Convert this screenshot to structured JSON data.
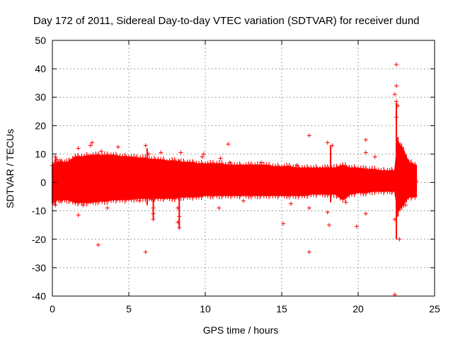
{
  "chart_data": {
    "type": "scatter",
    "title": "Day 172 of 2011, Sidereal Day-to-day VTEC variation (SDTVAR) for receiver dund",
    "xlabel": "GPS time / hours",
    "ylabel": "SDTVAR / TECUs",
    "xlim": [
      0,
      25
    ],
    "ylim": [
      -40,
      50
    ],
    "xticks": [
      0,
      5,
      10,
      15,
      20,
      25
    ],
    "yticks": [
      -40,
      -30,
      -20,
      -10,
      0,
      10,
      20,
      30,
      40,
      50
    ],
    "grid": true,
    "marker": "+",
    "color": "#ff0000",
    "series": [
      {
        "name": "SDTVAR",
        "envelope": {
          "x": [
            0.0,
            0.3,
            0.6,
            1.0,
            1.5,
            2.0,
            2.5,
            3.0,
            3.5,
            4.0,
            4.5,
            5.0,
            5.5,
            6.0,
            6.5,
            7.0,
            7.5,
            8.0,
            8.5,
            9.0,
            9.5,
            10.0,
            10.5,
            11.0,
            11.5,
            12.0,
            12.5,
            13.0,
            13.5,
            14.0,
            14.5,
            15.0,
            15.5,
            16.0,
            16.5,
            17.0,
            17.5,
            18.0,
            18.5,
            19.0,
            19.5,
            20.0,
            20.5,
            21.0,
            21.5,
            22.0,
            22.4,
            22.6,
            22.9,
            23.3,
            23.8
          ],
          "upper": [
            6,
            7,
            7,
            7,
            9,
            9,
            9.5,
            9.5,
            9.5,
            9.5,
            9,
            9,
            8.5,
            8.5,
            8,
            8,
            7.5,
            7.5,
            7,
            7,
            6.5,
            6.5,
            6.5,
            6.5,
            6,
            6,
            6,
            6,
            6,
            6,
            5.5,
            5.5,
            5.5,
            5,
            5,
            5,
            5,
            5,
            5,
            6,
            5,
            5,
            4.5,
            4.5,
            4,
            4,
            4,
            14,
            12,
            7,
            6
          ],
          "lower": [
            -7,
            -6,
            -6,
            -6,
            -7,
            -7,
            -7,
            -6.5,
            -6.5,
            -6,
            -6,
            -6,
            -5.5,
            -5.5,
            -5.5,
            -5.5,
            -5.5,
            -5.5,
            -5,
            -5,
            -5,
            -4.5,
            -4.5,
            -4.5,
            -4.5,
            -4.5,
            -4.5,
            -4.5,
            -4.5,
            -4.5,
            -4.5,
            -4.5,
            -4.5,
            -4.5,
            -4.5,
            -4,
            -4,
            -4,
            -4,
            -6,
            -4,
            -3.5,
            -3.5,
            -3,
            -3,
            -3,
            -3,
            -10,
            -8,
            -5,
            -5
          ]
        },
        "outliers": [
          {
            "x": 0.0,
            "y": 6
          },
          {
            "x": 0.2,
            "y": 9
          },
          {
            "x": 0.3,
            "y": 8
          },
          {
            "x": 0.2,
            "y": -8
          },
          {
            "x": 1.7,
            "y": 12
          },
          {
            "x": 1.7,
            "y": -11.5
          },
          {
            "x": 2.6,
            "y": 14
          },
          {
            "x": 2.5,
            "y": 13
          },
          {
            "x": 3.0,
            "y": -22
          },
          {
            "x": 3.2,
            "y": 11
          },
          {
            "x": 3.6,
            "y": -9
          },
          {
            "x": 4.3,
            "y": 12.5
          },
          {
            "x": 6.1,
            "y": 13
          },
          {
            "x": 6.1,
            "y": -24.5
          },
          {
            "x": 6.3,
            "y": 10
          },
          {
            "x": 6.5,
            "y": -6
          },
          {
            "x": 6.6,
            "y": -9
          },
          {
            "x": 6.6,
            "y": -11
          },
          {
            "x": 6.6,
            "y": -13
          },
          {
            "x": 7.1,
            "y": 10.5
          },
          {
            "x": 8.2,
            "y": -9
          },
          {
            "x": 8.3,
            "y": -12
          },
          {
            "x": 8.3,
            "y": -16
          },
          {
            "x": 8.4,
            "y": 10.5
          },
          {
            "x": 8.2,
            "y": -14
          },
          {
            "x": 9.2,
            "y": 7
          },
          {
            "x": 9.9,
            "y": 10
          },
          {
            "x": 10.9,
            "y": -9
          },
          {
            "x": 11.0,
            "y": 8.5
          },
          {
            "x": 11.5,
            "y": 13.5
          },
          {
            "x": 11.6,
            "y": 7
          },
          {
            "x": 13.7,
            "y": 7
          },
          {
            "x": 15.1,
            "y": -14.5
          },
          {
            "x": 15.6,
            "y": -7.5
          },
          {
            "x": 16.0,
            "y": 6
          },
          {
            "x": 16.8,
            "y": 16.5
          },
          {
            "x": 16.8,
            "y": -24.5
          },
          {
            "x": 16.8,
            "y": -9
          },
          {
            "x": 18.0,
            "y": 14
          },
          {
            "x": 18.0,
            "y": -10.5
          },
          {
            "x": 18.1,
            "y": -15
          },
          {
            "x": 18.3,
            "y": 13
          },
          {
            "x": 19.9,
            "y": -15.5
          },
          {
            "x": 20.5,
            "y": 15
          },
          {
            "x": 20.5,
            "y": -11
          },
          {
            "x": 20.5,
            "y": 10.5
          },
          {
            "x": 21.1,
            "y": 9
          },
          {
            "x": 22.4,
            "y": -39.5
          },
          {
            "x": 22.5,
            "y": 41.5
          },
          {
            "x": 22.5,
            "y": 34
          },
          {
            "x": 22.4,
            "y": 31
          },
          {
            "x": 22.5,
            "y": 28.5
          },
          {
            "x": 22.6,
            "y": 27
          },
          {
            "x": 22.5,
            "y": 23
          },
          {
            "x": 22.4,
            "y": -13
          },
          {
            "x": 22.7,
            "y": -20
          },
          {
            "x": 23.1,
            "y": -8
          },
          {
            "x": 23.3,
            "y": 7.5
          },
          {
            "x": 23.8,
            "y": 0.5
          },
          {
            "x": 9.8,
            "y": 9
          },
          {
            "x": 2.0,
            "y": -8
          },
          {
            "x": 5.7,
            "y": -6.5
          },
          {
            "x": 12.5,
            "y": -6.5
          },
          {
            "x": 19.2,
            "y": -7
          }
        ],
        "spikes": [
          {
            "x": 0.2,
            "lo": -8,
            "hi": 9
          },
          {
            "x": 6.2,
            "lo": -8,
            "hi": 12
          },
          {
            "x": 6.6,
            "lo": -13,
            "hi": 8
          },
          {
            "x": 8.3,
            "lo": -16,
            "hi": 8
          },
          {
            "x": 18.2,
            "lo": -7,
            "hi": 13
          },
          {
            "x": 22.5,
            "lo": -20,
            "hi": 28
          },
          {
            "x": 22.6,
            "lo": -12,
            "hi": 16
          }
        ]
      }
    ]
  }
}
